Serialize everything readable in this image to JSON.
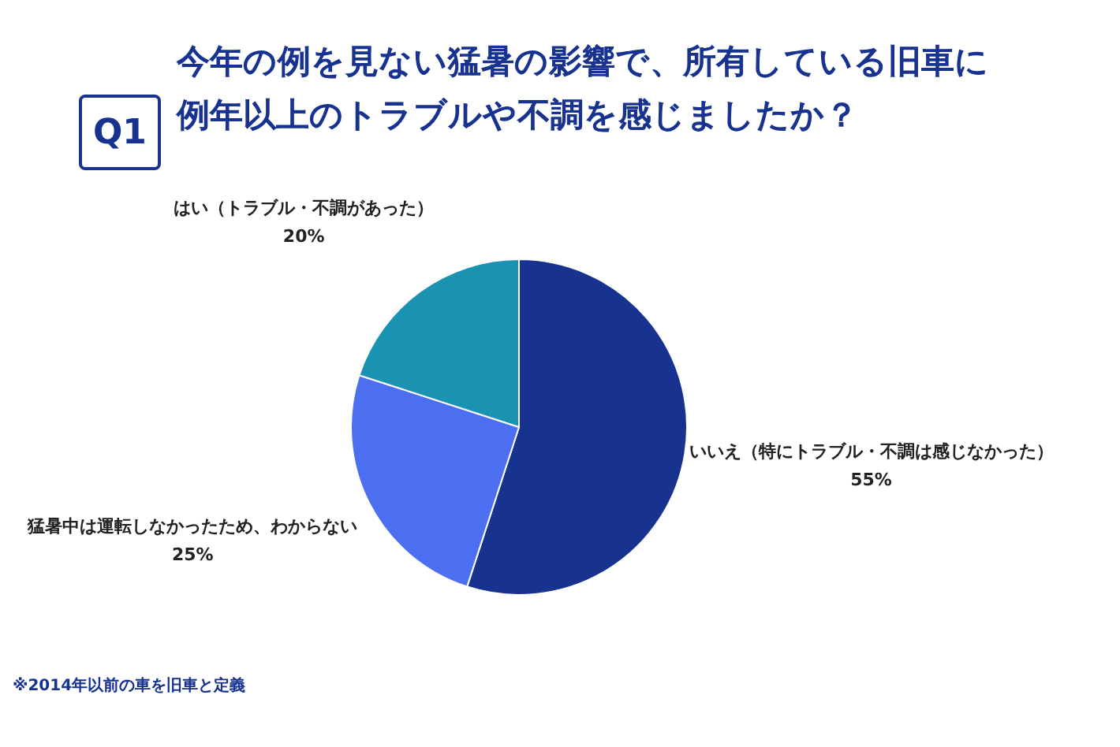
{
  "chart_data": {
    "type": "pie",
    "title": "今年の例を見ない猛暑の影響で、所有している旧車に例年以上のトラブルや不調を感じましたか？",
    "subtitle": "Q1",
    "categories": [
      "いいえ（特にトラブル・不調は感じなかった）",
      "猛暑中は運転しなかったため、わからない",
      "はい（トラブル・不調があった）"
    ],
    "values": [
      55,
      25,
      20
    ],
    "value_labels": [
      "55%",
      "25%",
      "20%"
    ],
    "colors": [
      "#17328f",
      "#4c6ff2",
      "#1a93b3"
    ],
    "legend": false,
    "annotations": [
      "※2014年以前の車を旧車と定義"
    ]
  }
}
